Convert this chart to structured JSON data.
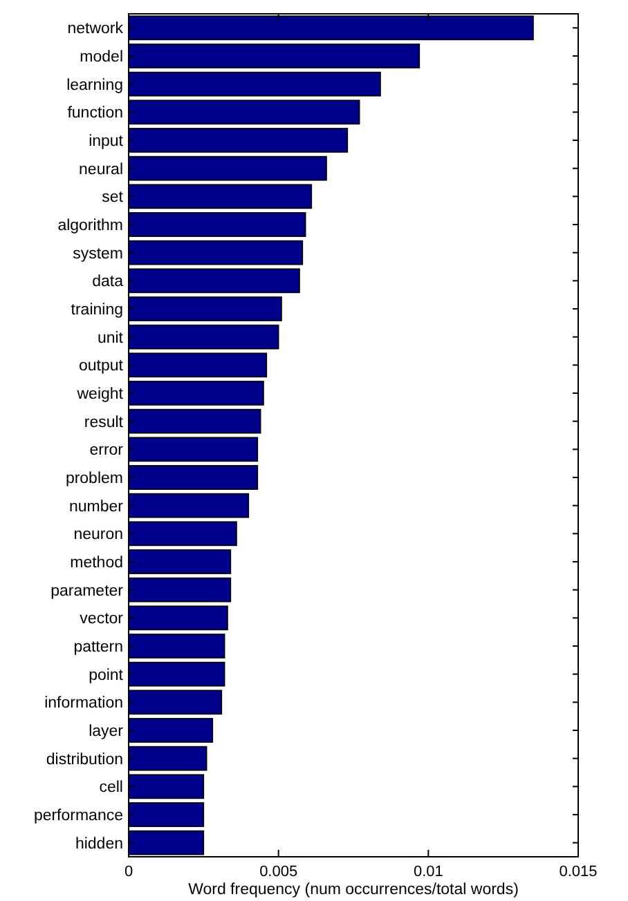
{
  "chart_data": {
    "type": "bar",
    "orientation": "horizontal",
    "xlabel": "Word frequency (num occurrences/total words)",
    "categories": [
      "network",
      "model",
      "learning",
      "function",
      "input",
      "neural",
      "set",
      "algorithm",
      "system",
      "data",
      "training",
      "unit",
      "output",
      "weight",
      "result",
      "error",
      "problem",
      "number",
      "neuron",
      "method",
      "parameter",
      "vector",
      "pattern",
      "point",
      "information",
      "layer",
      "distribution",
      "cell",
      "performance",
      "hidden"
    ],
    "values": [
      0.0135,
      0.0097,
      0.0084,
      0.0077,
      0.0073,
      0.0066,
      0.0061,
      0.0059,
      0.0058,
      0.0057,
      0.0051,
      0.005,
      0.0046,
      0.0045,
      0.0044,
      0.0043,
      0.0043,
      0.004,
      0.0036,
      0.0034,
      0.0034,
      0.0033,
      0.0032,
      0.0032,
      0.0031,
      0.0028,
      0.0026,
      0.0025,
      0.0025,
      0.0025
    ],
    "color": "#00008b",
    "xlim": [
      0,
      0.015
    ],
    "xticks": [
      0,
      0.005,
      0.01,
      0.015
    ],
    "grid": false
  }
}
